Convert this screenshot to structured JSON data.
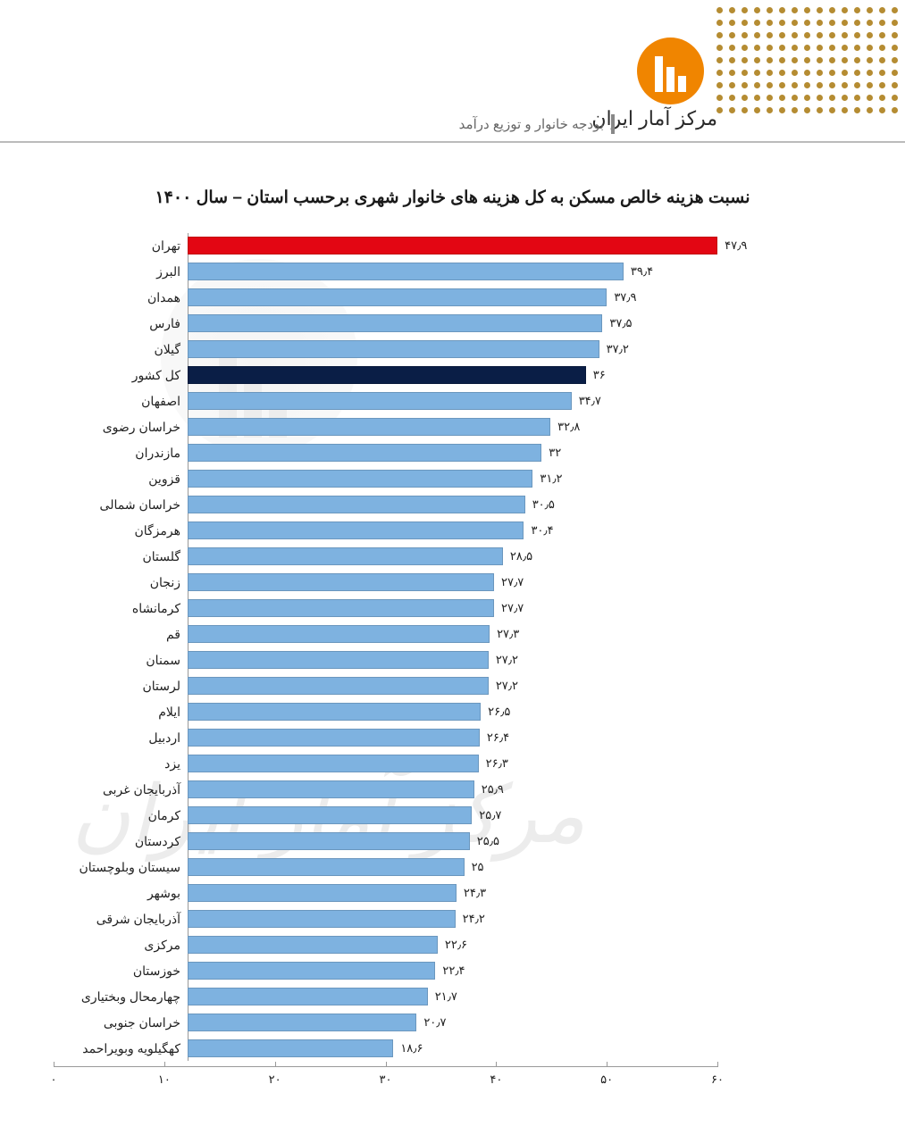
{
  "header": {
    "org_name": "مرکز آمار ایران",
    "section_label": "بودجه خانوار و توزیع درآمد"
  },
  "watermark_text": "مرکز آمار ایران",
  "chart": {
    "type": "horizontal_bar",
    "title": "نسبت هزینه خالص مسکن به کل هزینه های خانوار شهری برحسب استان – سال ۱۴۰۰",
    "xlim": [
      0,
      60
    ],
    "xtick_step": 10,
    "xticks_labels": [
      "۰",
      "۱۰",
      "۲۰",
      "۳۰",
      "۴۰",
      "۵۰",
      "۶۰"
    ],
    "bar_color_default": "#7eb2e0",
    "bar_color_tehran": "#e30613",
    "bar_color_total": "#0a1e46",
    "background_color": "#ffffff",
    "label_fontsize": 14,
    "value_fontsize": 13,
    "title_fontsize": 19,
    "data": [
      {
        "label": "تهران",
        "value": 47.9,
        "value_label": "۴۷٫۹",
        "color_key": "tehran"
      },
      {
        "label": "البرز",
        "value": 39.4,
        "value_label": "۳۹٫۴",
        "color_key": "default"
      },
      {
        "label": "همدان",
        "value": 37.9,
        "value_label": "۳۷٫۹",
        "color_key": "default"
      },
      {
        "label": "فارس",
        "value": 37.5,
        "value_label": "۳۷٫۵",
        "color_key": "default"
      },
      {
        "label": "گیلان",
        "value": 37.2,
        "value_label": "۳۷٫۲",
        "color_key": "default"
      },
      {
        "label": "کل کشور",
        "value": 36.0,
        "value_label": "۳۶",
        "color_key": "total"
      },
      {
        "label": "اصفهان",
        "value": 34.7,
        "value_label": "۳۴٫۷",
        "color_key": "default"
      },
      {
        "label": "خراسان رضوی",
        "value": 32.8,
        "value_label": "۳۲٫۸",
        "color_key": "default"
      },
      {
        "label": "مازندران",
        "value": 32.0,
        "value_label": "۳۲",
        "color_key": "default"
      },
      {
        "label": "قزوین",
        "value": 31.2,
        "value_label": "۳۱٫۲",
        "color_key": "default"
      },
      {
        "label": "خراسان شمالی",
        "value": 30.5,
        "value_label": "۳۰٫۵",
        "color_key": "default"
      },
      {
        "label": "هرمزگان",
        "value": 30.4,
        "value_label": "۳۰٫۴",
        "color_key": "default"
      },
      {
        "label": "گلستان",
        "value": 28.5,
        "value_label": "۲۸٫۵",
        "color_key": "default"
      },
      {
        "label": "زنجان",
        "value": 27.7,
        "value_label": "۲۷٫۷",
        "color_key": "default"
      },
      {
        "label": "کرمانشاه",
        "value": 27.7,
        "value_label": "۲۷٫۷",
        "color_key": "default"
      },
      {
        "label": "قم",
        "value": 27.3,
        "value_label": "۲۷٫۳",
        "color_key": "default"
      },
      {
        "label": "سمنان",
        "value": 27.2,
        "value_label": "۲۷٫۲",
        "color_key": "default"
      },
      {
        "label": "لرستان",
        "value": 27.2,
        "value_label": "۲۷٫۲",
        "color_key": "default"
      },
      {
        "label": "ایلام",
        "value": 26.5,
        "value_label": "۲۶٫۵",
        "color_key": "default"
      },
      {
        "label": "اردبیل",
        "value": 26.4,
        "value_label": "۲۶٫۴",
        "color_key": "default"
      },
      {
        "label": "یزد",
        "value": 26.3,
        "value_label": "۲۶٫۳",
        "color_key": "default"
      },
      {
        "label": "آذربایجان غربی",
        "value": 25.9,
        "value_label": "۲۵٫۹",
        "color_key": "default"
      },
      {
        "label": "کرمان",
        "value": 25.7,
        "value_label": "۲۵٫۷",
        "color_key": "default"
      },
      {
        "label": "کردستان",
        "value": 25.5,
        "value_label": "۲۵٫۵",
        "color_key": "default"
      },
      {
        "label": "سیستان وبلوچستان",
        "value": 25.0,
        "value_label": "۲۵",
        "color_key": "default"
      },
      {
        "label": "بوشهر",
        "value": 24.3,
        "value_label": "۲۴٫۳",
        "color_key": "default"
      },
      {
        "label": "آذربایجان شرقی",
        "value": 24.2,
        "value_label": "۲۴٫۲",
        "color_key": "default"
      },
      {
        "label": "مرکزی",
        "value": 22.6,
        "value_label": "۲۲٫۶",
        "color_key": "default"
      },
      {
        "label": "خوزستان",
        "value": 22.4,
        "value_label": "۲۲٫۴",
        "color_key": "default"
      },
      {
        "label": "چهارمحال وبختیاری",
        "value": 21.7,
        "value_label": "۲۱٫۷",
        "color_key": "default"
      },
      {
        "label": "خراسان جنوبی",
        "value": 20.7,
        "value_label": "۲۰٫۷",
        "color_key": "default"
      },
      {
        "label": "کهگیلویه وبویراحمد",
        "value": 18.6,
        "value_label": "۱۸٫۶",
        "color_key": "default"
      }
    ]
  }
}
